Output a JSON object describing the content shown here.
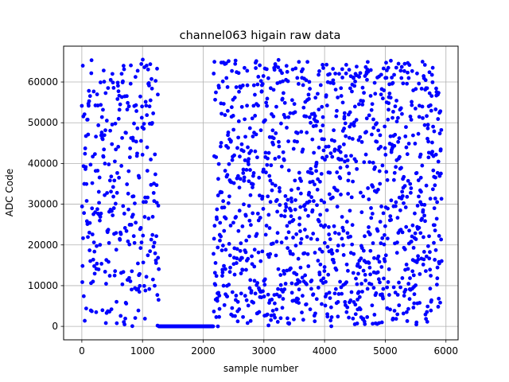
{
  "chart_data": {
    "type": "scatter",
    "title": "channel063 higain raw data",
    "xlabel": "sample number",
    "ylabel": "ADC Code",
    "xlim": [
      -300,
      6200
    ],
    "ylim": [
      -3300,
      68800
    ],
    "xticks": [
      0,
      1000,
      2000,
      3000,
      4000,
      5000,
      6000
    ],
    "yticks": [
      0,
      10000,
      20000,
      30000,
      40000,
      50000,
      60000
    ],
    "grid": true,
    "legend": "none",
    "marker_color": "#0000ff",
    "marker": "circle",
    "series": [
      {
        "segments": [
          {
            "x_start": 0,
            "x_end": 1270,
            "step": 4,
            "distribution": "uniform",
            "y_min": 0,
            "y_max": 65535
          },
          {
            "x_start": 1270,
            "x_end": 2170,
            "step": 6,
            "distribution": "constant",
            "y": 0
          },
          {
            "x_start": 2170,
            "x_end": 5930,
            "step": 3,
            "distribution": "uniform",
            "y_min": 0,
            "y_max": 65535
          }
        ]
      }
    ]
  }
}
